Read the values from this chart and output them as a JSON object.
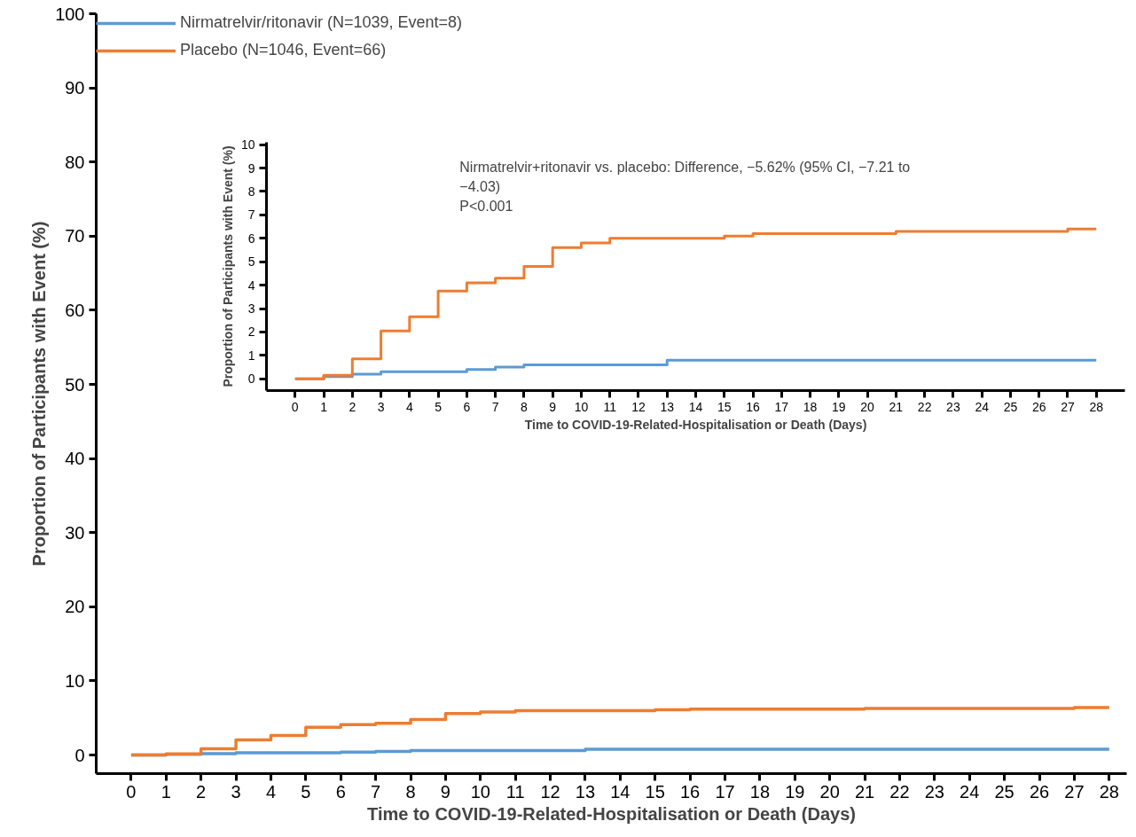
{
  "chart_data": [
    {
      "type": "step",
      "xlabel": "Time to COVID-19-Related-Hospitalisation or Death (Days)",
      "ylabel": "Proportion of Participants with Event (%)",
      "xlim": [
        -1,
        28.5
      ],
      "ylim": [
        -2.5,
        100
      ],
      "xticks": [
        0,
        1,
        2,
        3,
        4,
        5,
        6,
        7,
        8,
        9,
        10,
        11,
        12,
        13,
        14,
        15,
        16,
        17,
        18,
        19,
        20,
        21,
        22,
        23,
        24,
        25,
        26,
        27,
        28
      ],
      "yticks": [
        0,
        10,
        20,
        30,
        40,
        50,
        60,
        70,
        80,
        90,
        100
      ],
      "legend": "top left",
      "grid": false,
      "line_style": "solid",
      "series": [
        {
          "name": "Nirmatrelvir/ritonavir (N=1039, Event=8)",
          "color": "#5b9bd5",
          "x": [
            0,
            1,
            2,
            3,
            6,
            7,
            8,
            13,
            28
          ],
          "values": [
            0,
            0.1,
            0.2,
            0.3,
            0.4,
            0.5,
            0.6,
            0.8,
            0.8
          ]
        },
        {
          "name": "Placebo (N=1046, Event=66)",
          "color": "#ed7d31",
          "x": [
            0,
            1,
            2,
            3,
            4,
            5,
            6,
            7,
            8,
            9,
            10,
            11,
            15,
            16,
            21,
            27,
            28
          ],
          "values": [
            0,
            0.15,
            0.85,
            2.05,
            2.65,
            3.75,
            4.1,
            4.3,
            4.8,
            5.6,
            5.8,
            6.0,
            6.1,
            6.2,
            6.3,
            6.4,
            6.4
          ]
        }
      ]
    },
    {
      "type": "step",
      "xlabel": "Time to COVID-19-Related-Hospitalisation or Death (Days)",
      "ylabel": "Proportion of Participants with Event (%)",
      "xlim": [
        -1,
        29
      ],
      "ylim": [
        -0.5,
        10.1
      ],
      "xticks": [
        0,
        1,
        2,
        3,
        4,
        5,
        6,
        7,
        8,
        9,
        10,
        11,
        12,
        13,
        14,
        15,
        16,
        17,
        18,
        19,
        20,
        21,
        22,
        23,
        24,
        25,
        26,
        27,
        28
      ],
      "yticks": [
        0,
        1,
        2,
        3,
        4,
        5,
        6,
        7,
        8,
        9,
        10
      ],
      "grid": false,
      "line_style": "solid",
      "annotations": [
        "Nirmatrelvir+ritonavir vs. placebo: Difference, −5.62% (95% CI, −7.21 to −4.03)",
        "P<0.001"
      ],
      "series": [
        {
          "color": "#5b9bd5",
          "x": [
            0,
            1,
            2,
            3,
            6,
            7,
            8,
            13,
            28
          ],
          "values": [
            0,
            0.1,
            0.2,
            0.3,
            0.4,
            0.5,
            0.6,
            0.8,
            0.8
          ]
        },
        {
          "color": "#ed7d31",
          "x": [
            0,
            1,
            2,
            3,
            4,
            5,
            6,
            7,
            8,
            9,
            10,
            11,
            15,
            16,
            21,
            27,
            28
          ],
          "values": [
            0,
            0.15,
            0.85,
            2.05,
            2.65,
            3.75,
            4.1,
            4.3,
            4.8,
            5.6,
            5.8,
            6.0,
            6.1,
            6.2,
            6.3,
            6.4,
            6.4
          ]
        }
      ]
    }
  ]
}
